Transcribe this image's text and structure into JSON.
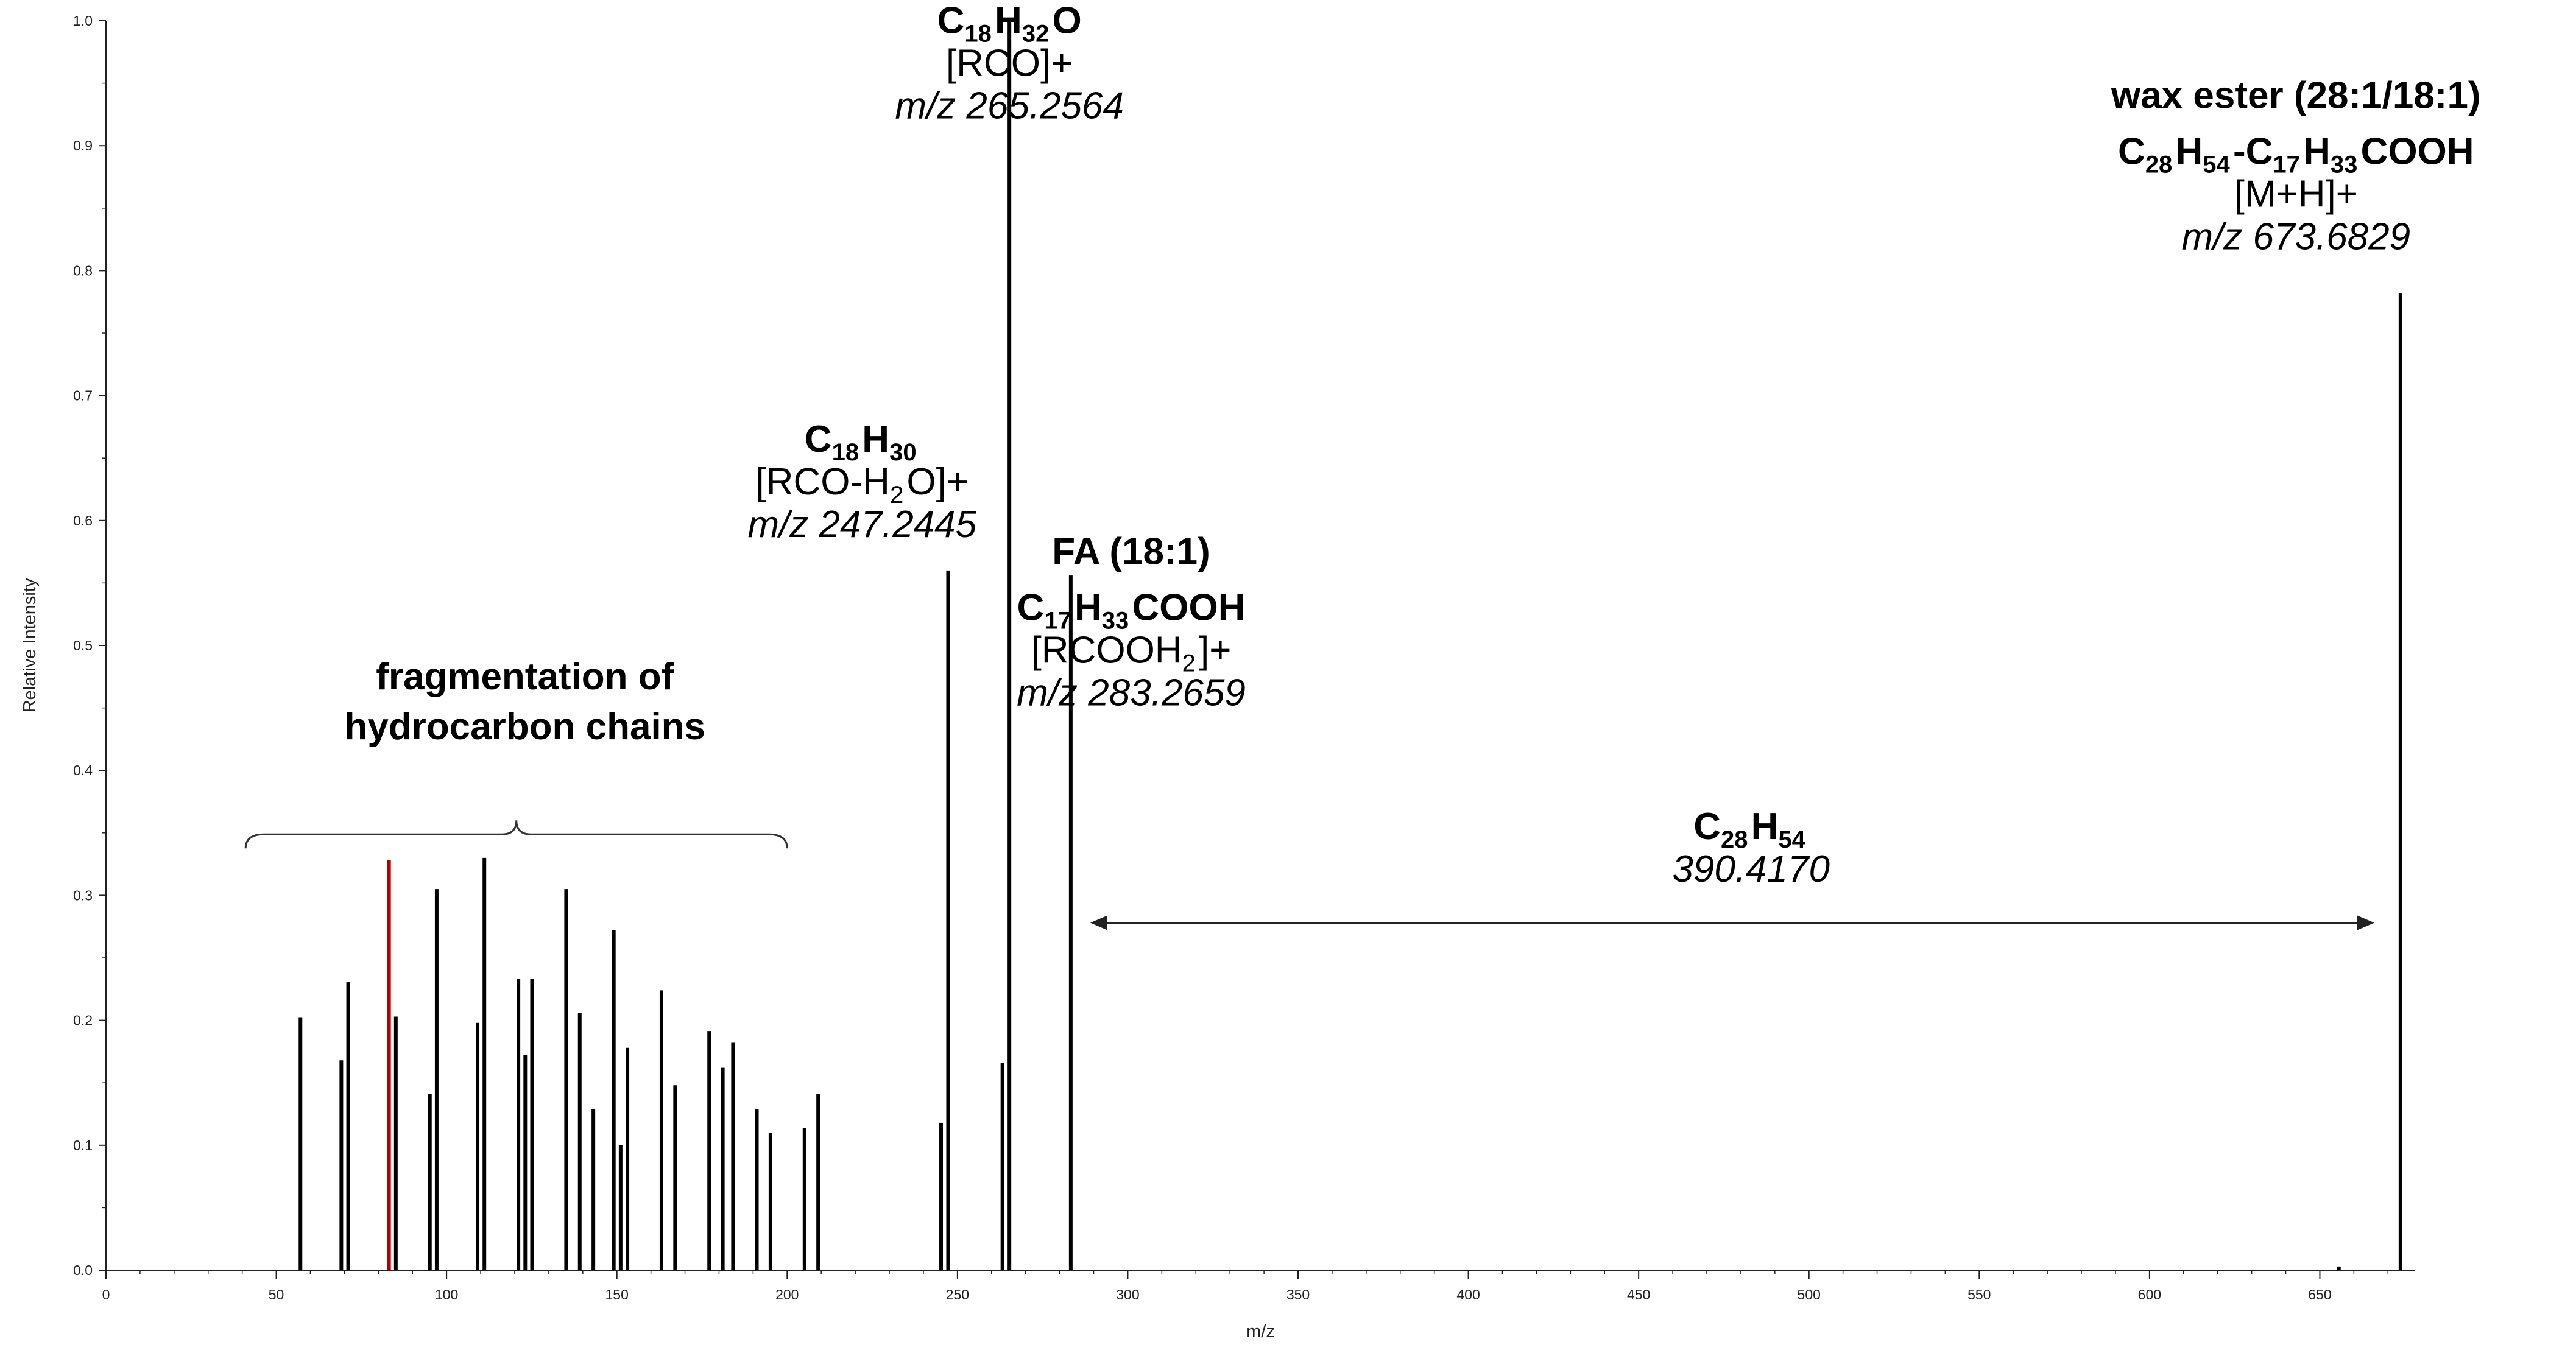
{
  "chart_data": {
    "type": "bar",
    "xlabel": "m/z",
    "ylabel": "Relative Intensity",
    "xlim": [
      0,
      678
    ],
    "ylim": [
      0,
      1.0
    ],
    "x_ticks": [
      0,
      50,
      100,
      150,
      200,
      250,
      300,
      350,
      400,
      450,
      500,
      550,
      600,
      650
    ],
    "y_ticks": [
      0.0,
      0.1,
      0.2,
      0.3,
      0.4,
      0.5,
      0.6,
      0.7,
      0.8,
      0.9,
      1.0
    ],
    "x_tick_labels": [
      "0",
      "50",
      "100",
      "150",
      "200",
      "250",
      "300",
      "350",
      "400",
      "450",
      "500",
      "550",
      "600",
      "650"
    ],
    "y_tick_labels": [
      "0.0",
      "0.1",
      "0.2",
      "0.3",
      "0.4",
      "0.5",
      "0.6",
      "0.7",
      "0.8",
      "0.9",
      "1.0"
    ],
    "grid": false,
    "peaks": [
      {
        "x": 57.1,
        "y": 0.202,
        "color": "#000000"
      },
      {
        "x": 69.1,
        "y": 0.168,
        "color": "#000000"
      },
      {
        "x": 71.1,
        "y": 0.231,
        "color": "#000000"
      },
      {
        "x": 83.1,
        "y": 0.328,
        "color": "#b00000"
      },
      {
        "x": 85.1,
        "y": 0.203,
        "color": "#000000"
      },
      {
        "x": 95.1,
        "y": 0.141,
        "color": "#000000"
      },
      {
        "x": 97.1,
        "y": 0.305,
        "color": "#000000"
      },
      {
        "x": 109.1,
        "y": 0.198,
        "color": "#000000"
      },
      {
        "x": 111.1,
        "y": 0.33,
        "color": "#000000"
      },
      {
        "x": 121.1,
        "y": 0.233,
        "color": "#000000"
      },
      {
        "x": 123.1,
        "y": 0.172,
        "color": "#000000"
      },
      {
        "x": 125.1,
        "y": 0.233,
        "color": "#000000"
      },
      {
        "x": 135.1,
        "y": 0.305,
        "color": "#000000"
      },
      {
        "x": 139.1,
        "y": 0.206,
        "color": "#000000"
      },
      {
        "x": 143.1,
        "y": 0.129,
        "color": "#000000"
      },
      {
        "x": 149.1,
        "y": 0.272,
        "color": "#000000"
      },
      {
        "x": 151.1,
        "y": 0.1,
        "color": "#000000"
      },
      {
        "x": 153.1,
        "y": 0.178,
        "color": "#000000"
      },
      {
        "x": 163.1,
        "y": 0.224,
        "color": "#000000"
      },
      {
        "x": 167.1,
        "y": 0.148,
        "color": "#000000"
      },
      {
        "x": 177.1,
        "y": 0.191,
        "color": "#000000"
      },
      {
        "x": 181.1,
        "y": 0.162,
        "color": "#000000"
      },
      {
        "x": 184.1,
        "y": 0.182,
        "color": "#000000"
      },
      {
        "x": 191.1,
        "y": 0.129,
        "color": "#000000"
      },
      {
        "x": 195.1,
        "y": 0.11,
        "color": "#000000"
      },
      {
        "x": 205.1,
        "y": 0.114,
        "color": "#000000"
      },
      {
        "x": 209.1,
        "y": 0.141,
        "color": "#000000"
      },
      {
        "x": 245.2,
        "y": 0.118,
        "color": "#000000"
      },
      {
        "x": 247.2445,
        "y": 0.56,
        "color": "#000000"
      },
      {
        "x": 263.2,
        "y": 0.166,
        "color": "#000000"
      },
      {
        "x": 265.2564,
        "y": 1.0,
        "color": "#000000"
      },
      {
        "x": 283.2659,
        "y": 0.556,
        "color": "#000000"
      },
      {
        "x": 655.6,
        "y": 0.003,
        "color": "#000000"
      },
      {
        "x": 673.6829,
        "y": 0.782,
        "color": "#000000"
      }
    ],
    "annotations": {
      "rco": {
        "formula": [
          {
            "t": "C",
            "s": ""
          },
          {
            "t": "18",
            "s": "sub"
          },
          {
            "t": "H",
            "s": ""
          },
          {
            "t": "32",
            "s": "sub"
          },
          {
            "t": "O",
            "s": ""
          }
        ],
        "ion": [
          {
            "t": "[RCO]+",
            "s": ""
          }
        ],
        "mz": "m/z 265.2564",
        "anchor_x": 265.2564,
        "anchor_y": 0.99
      },
      "rco_h2o": {
        "formula": [
          {
            "t": "C",
            "s": ""
          },
          {
            "t": "18",
            "s": "sub"
          },
          {
            "t": "H",
            "s": ""
          },
          {
            "t": "30",
            "s": "sub"
          }
        ],
        "ion": [
          {
            "t": "[RCO-H",
            "s": ""
          },
          {
            "t": "2",
            "s": "sub"
          },
          {
            "t": "O]+",
            "s": ""
          }
        ],
        "mz": "m/z 247.2445",
        "anchor_x": 222.0,
        "anchor_y": 0.655
      },
      "fa": {
        "label": "FA (18:1)",
        "formula": [
          {
            "t": "C",
            "s": ""
          },
          {
            "t": "17",
            "s": "sub"
          },
          {
            "t": "H",
            "s": ""
          },
          {
            "t": "33",
            "s": "sub"
          },
          {
            "t": "COOH",
            "s": ""
          }
        ],
        "ion": [
          {
            "t": "[RCOOH",
            "s": ""
          },
          {
            "t": "2",
            "s": "sub"
          },
          {
            "t": "]+",
            "s": ""
          }
        ],
        "mz": "m/z 283.2659",
        "anchor_x": 301.0,
        "anchor_y": 0.565
      },
      "wax_ester": {
        "label": "wax ester (28:1/18:1)",
        "formula": [
          {
            "t": "C",
            "s": ""
          },
          {
            "t": "28",
            "s": "sub"
          },
          {
            "t": "H",
            "s": ""
          },
          {
            "t": "54",
            "s": "sub"
          },
          {
            "t": "-C",
            "s": ""
          },
          {
            "t": "17",
            "s": "sub"
          },
          {
            "t": "H",
            "s": ""
          },
          {
            "t": "33",
            "s": "sub"
          },
          {
            "t": "COOH",
            "s": ""
          }
        ],
        "ion": [
          {
            "t": "[M+H]+",
            "s": ""
          }
        ],
        "mz": "m/z 673.6829",
        "anchor_x": 643.0,
        "anchor_y": 0.93
      },
      "fragmentation": {
        "lines": [
          "fragmentation of",
          "hydrocarbon chains"
        ],
        "brace_from": 41,
        "brace_to": 200,
        "brace_y": 0.36,
        "anchor_x": 123.0,
        "anchor_y": 0.465
      },
      "loss": {
        "formula": [
          {
            "t": "C",
            "s": ""
          },
          {
            "t": "28",
            "s": "sub"
          },
          {
            "t": "H",
            "s": ""
          },
          {
            "t": "54",
            "s": "sub"
          }
        ],
        "value": "390.4170",
        "arrow_from": 289,
        "arrow_to": 666,
        "arrow_y": 0.278,
        "anchor_x": 483.0,
        "anchor_y": 0.345
      }
    },
    "colors": {
      "highlight": "#ff0000",
      "peak": "#000000",
      "axis": "#222222"
    }
  }
}
